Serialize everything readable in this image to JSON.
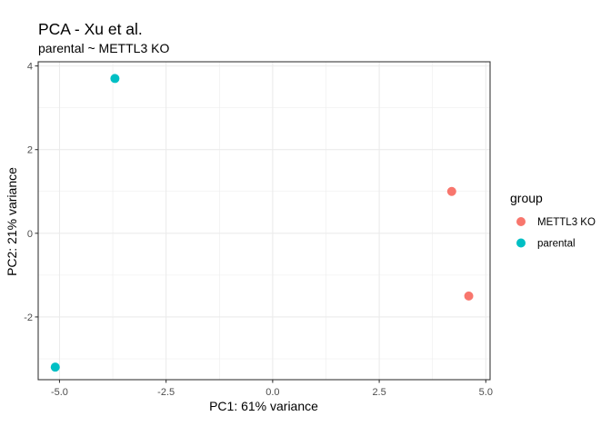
{
  "chart_data": {
    "type": "scatter",
    "title": "PCA - Xu et al.",
    "subtitle": "parental ~ METTL3 KO",
    "xlabel": "PC1: 61% variance",
    "ylabel": "PC2: 21% variance",
    "xlim": [
      -5.5,
      5.1
    ],
    "ylim": [
      -3.5,
      4.1
    ],
    "xticks": [
      -5.0,
      -2.5,
      0.0,
      2.5,
      5.0
    ],
    "xtick_labels": [
      "-5.0",
      "-2.5",
      "0.0",
      "2.5",
      "5.0"
    ],
    "yticks": [
      -2,
      0,
      2,
      4
    ],
    "ytick_labels": [
      "-2",
      "0",
      "2",
      "4"
    ],
    "grid": true,
    "legend": {
      "title": "group",
      "placement": "right",
      "entries": [
        {
          "label": "METTL3 KO",
          "color": "#F8766D"
        },
        {
          "label": "parental",
          "color": "#00BFC4"
        }
      ]
    },
    "series": [
      {
        "name": "METTL3 KO",
        "color": "#F8766D",
        "points": [
          {
            "x": 4.2,
            "y": 1.0
          },
          {
            "x": 4.6,
            "y": -1.5
          }
        ]
      },
      {
        "name": "parental",
        "color": "#00BFC4",
        "points": [
          {
            "x": -3.7,
            "y": 3.7
          },
          {
            "x": -5.1,
            "y": -3.2
          }
        ]
      }
    ]
  }
}
